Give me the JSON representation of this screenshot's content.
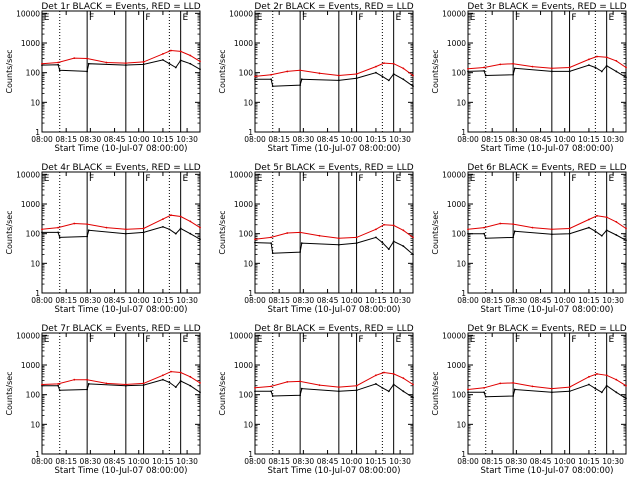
{
  "colors": {
    "events": "#000000",
    "lld": "#e00000",
    "frame": "#000000"
  },
  "shared_axes": {
    "xlabel": "Start Time (10-Jul-07 08:00:00)",
    "ylabel": "Counts/sec",
    "x_ticks": [
      0,
      15,
      30,
      45,
      60,
      75,
      90
    ],
    "x_tick_labels": [
      "08:00",
      "08:15",
      "08:30",
      "08:45",
      "10:00",
      "10:15",
      "10:30"
    ],
    "y_ticks": [
      1,
      10,
      100,
      1000,
      10000
    ],
    "y_tick_labels": [
      "1",
      "10",
      "100",
      "1000",
      "10000"
    ],
    "xlim": [
      0,
      98
    ],
    "ylim": [
      1,
      12000
    ],
    "scale": "log",
    "dotted_markers": [
      11,
      79
    ],
    "solid_markers": [
      28,
      52,
      63,
      86
    ],
    "flags": [
      {
        "x": 0.5,
        "label": "E"
      },
      {
        "x": 28.5,
        "label": "F"
      },
      {
        "x": 63.5,
        "label": "F"
      },
      {
        "x": 86.5,
        "label": "E"
      }
    ]
  },
  "chart_data": [
    {
      "type": "line",
      "title": "Det 1r BLACK = Events, RED = LLD",
      "series": [
        {
          "name": "Events",
          "x": [
            0,
            10,
            11,
            28,
            29,
            52,
            63,
            75,
            79,
            83,
            86,
            92,
            98
          ],
          "y": [
            180,
            185,
            120,
            110,
            200,
            180,
            190,
            270,
            200,
            150,
            260,
            200,
            130
          ]
        },
        {
          "name": "LLD",
          "x": [
            0,
            10,
            20,
            28,
            40,
            52,
            63,
            75,
            80,
            86,
            92,
            98
          ],
          "y": [
            200,
            220,
            310,
            300,
            220,
            210,
            230,
            430,
            560,
            520,
            380,
            240
          ]
        }
      ]
    },
    {
      "type": "line",
      "title": "Det 2r BLACK = Events, RED = LLD",
      "series": [
        {
          "name": "Events",
          "x": [
            0,
            10,
            11,
            28,
            29,
            52,
            63,
            75,
            79,
            83,
            86,
            92,
            98
          ],
          "y": [
            60,
            60,
            35,
            38,
            60,
            55,
            65,
            100,
            75,
            55,
            90,
            60,
            35
          ]
        },
        {
          "name": "LLD",
          "x": [
            0,
            10,
            20,
            28,
            40,
            52,
            63,
            75,
            80,
            86,
            92,
            98
          ],
          "y": [
            75,
            85,
            110,
            120,
            95,
            80,
            90,
            160,
            210,
            200,
            140,
            80
          ]
        }
      ]
    },
    {
      "type": "line",
      "title": "Det 3r BLACK = Events, RED = LLD",
      "series": [
        {
          "name": "Events",
          "x": [
            0,
            10,
            11,
            28,
            29,
            52,
            63,
            75,
            79,
            83,
            86,
            92,
            98
          ],
          "y": [
            110,
            115,
            80,
            85,
            140,
            110,
            110,
            180,
            150,
            110,
            170,
            110,
            70
          ]
        },
        {
          "name": "LLD",
          "x": [
            0,
            10,
            20,
            28,
            40,
            52,
            63,
            75,
            80,
            86,
            92,
            98
          ],
          "y": [
            135,
            150,
            190,
            200,
            160,
            140,
            150,
            280,
            350,
            330,
            250,
            150
          ]
        }
      ]
    },
    {
      "type": "line",
      "title": "Det 4r BLACK = Events, RED = LLD",
      "series": [
        {
          "name": "Events",
          "x": [
            0,
            10,
            11,
            28,
            29,
            52,
            63,
            75,
            79,
            83,
            86,
            92,
            98
          ],
          "y": [
            110,
            110,
            75,
            80,
            130,
            100,
            110,
            170,
            140,
            100,
            150,
            100,
            65
          ]
        },
        {
          "name": "LLD",
          "x": [
            0,
            10,
            20,
            28,
            40,
            52,
            63,
            75,
            80,
            86,
            92,
            98
          ],
          "y": [
            140,
            160,
            220,
            210,
            160,
            140,
            150,
            310,
            420,
            380,
            260,
            160
          ]
        }
      ]
    },
    {
      "type": "line",
      "title": "Det 5r BLACK = Events, RED = LLD",
      "series": [
        {
          "name": "Events",
          "x": [
            0,
            10,
            11,
            28,
            29,
            52,
            63,
            75,
            79,
            83,
            86,
            92,
            98
          ],
          "y": [
            50,
            48,
            22,
            24,
            48,
            42,
            48,
            75,
            50,
            30,
            55,
            38,
            20
          ]
        },
        {
          "name": "LLD",
          "x": [
            0,
            10,
            20,
            28,
            40,
            52,
            63,
            75,
            80,
            86,
            92,
            98
          ],
          "y": [
            65,
            75,
            105,
            110,
            85,
            70,
            75,
            140,
            200,
            190,
            130,
            75
          ]
        }
      ]
    },
    {
      "type": "line",
      "title": "Det 6r BLACK = Events, RED = LLD",
      "series": [
        {
          "name": "Events",
          "x": [
            0,
            10,
            11,
            28,
            29,
            52,
            63,
            75,
            79,
            83,
            86,
            92,
            98
          ],
          "y": [
            100,
            100,
            70,
            75,
            120,
            95,
            100,
            160,
            120,
            85,
            130,
            90,
            60
          ]
        },
        {
          "name": "LLD",
          "x": [
            0,
            10,
            20,
            28,
            40,
            52,
            63,
            75,
            80,
            86,
            92,
            98
          ],
          "y": [
            140,
            160,
            220,
            210,
            160,
            140,
            150,
            300,
            400,
            360,
            250,
            150
          ]
        }
      ]
    },
    {
      "type": "line",
      "title": "Det 7r BLACK = Events, RED = LLD",
      "series": [
        {
          "name": "Events",
          "x": [
            0,
            10,
            11,
            28,
            29,
            52,
            63,
            75,
            79,
            83,
            86,
            92,
            98
          ],
          "y": [
            200,
            200,
            140,
            150,
            230,
            200,
            210,
            320,
            260,
            180,
            290,
            200,
            120
          ]
        },
        {
          "name": "LLD",
          "x": [
            0,
            10,
            20,
            28,
            40,
            52,
            63,
            75,
            80,
            86,
            92,
            98
          ],
          "y": [
            220,
            230,
            320,
            320,
            240,
            220,
            240,
            450,
            600,
            560,
            400,
            250
          ]
        }
      ]
    },
    {
      "type": "line",
      "title": "Det 8r BLACK = Events, RED = LLD",
      "series": [
        {
          "name": "Events",
          "x": [
            0,
            10,
            11,
            28,
            29,
            52,
            63,
            75,
            79,
            83,
            86,
            92,
            98
          ],
          "y": [
            130,
            130,
            90,
            95,
            160,
            130,
            140,
            230,
            170,
            130,
            220,
            130,
            80
          ]
        },
        {
          "name": "LLD",
          "x": [
            0,
            10,
            20,
            28,
            40,
            52,
            63,
            75,
            80,
            86,
            92,
            98
          ],
          "y": [
            170,
            190,
            270,
            280,
            210,
            180,
            200,
            450,
            560,
            500,
            360,
            220
          ]
        }
      ]
    },
    {
      "type": "line",
      "title": "Det 9r BLACK = Events, RED = LLD",
      "series": [
        {
          "name": "Events",
          "x": [
            0,
            10,
            11,
            28,
            29,
            52,
            63,
            75,
            79,
            83,
            86,
            92,
            98
          ],
          "y": [
            120,
            120,
            85,
            90,
            150,
            120,
            130,
            220,
            160,
            120,
            200,
            120,
            75
          ]
        },
        {
          "name": "LLD",
          "x": [
            0,
            10,
            20,
            28,
            40,
            52,
            63,
            75,
            80,
            86,
            92,
            98
          ],
          "y": [
            150,
            170,
            240,
            250,
            190,
            160,
            180,
            400,
            500,
            450,
            320,
            200
          ]
        }
      ]
    }
  ]
}
